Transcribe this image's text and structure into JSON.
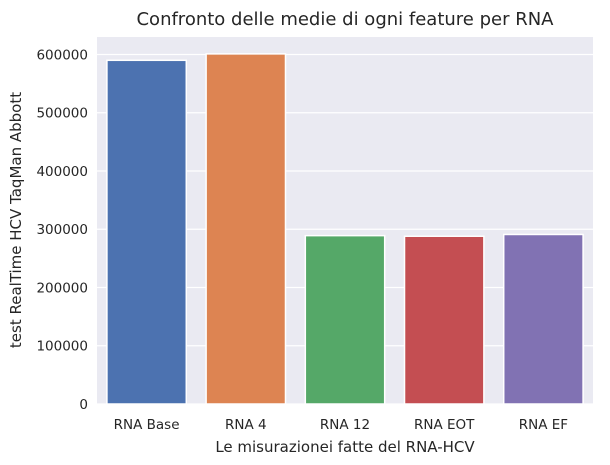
{
  "chart_data": {
    "type": "bar",
    "title": "Confronto delle medie di ogni feature per RNA",
    "xlabel": "Le misurazionei fatte del RNA-HCV",
    "ylabel": "test RealTime HCV TaqMan Abbott",
    "categories": [
      "RNA Base",
      "RNA 4",
      "RNA 12",
      "RNA EOT",
      "RNA EF"
    ],
    "values": [
      590000,
      601000,
      289000,
      288000,
      291000
    ],
    "colors": [
      "#4c72b0",
      "#dd8452",
      "#55a868",
      "#c44e52",
      "#8172b3"
    ],
    "ylim": [
      0,
      630000
    ],
    "yticks": [
      0,
      100000,
      200000,
      300000,
      400000,
      500000,
      600000
    ],
    "ytick_labels": [
      "0",
      "100000",
      "200000",
      "300000",
      "400000",
      "500000",
      "600000"
    ],
    "grid": true,
    "background": "#eaeaf2"
  }
}
